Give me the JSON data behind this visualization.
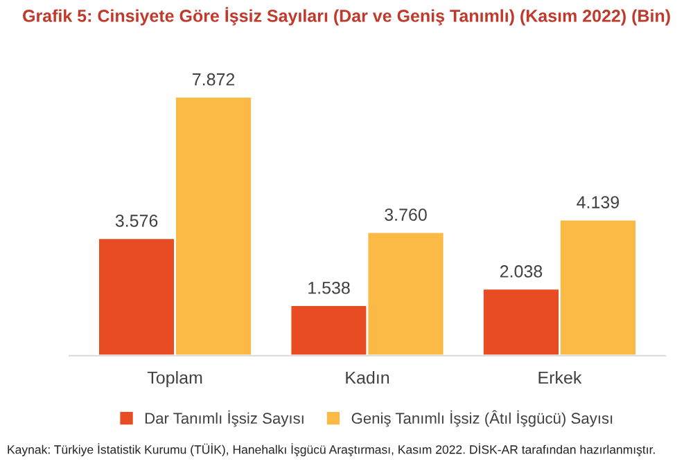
{
  "chart_data": {
    "type": "bar",
    "title": "Grafik 5: Cinsiyete Göre İşsiz Sayıları (Dar ve Geniş Tanımlı) (Kasım 2022) (Bin)",
    "categories": [
      "Toplam",
      "Kadın",
      "Erkek"
    ],
    "series": [
      {
        "name": "Dar Tanımlı İşsiz Sayısı",
        "color": "#e84c22",
        "values": [
          3576,
          1538,
          2038
        ],
        "value_labels": [
          "3.576",
          "1.538",
          "2.038"
        ]
      },
      {
        "name": "Geniş Tanımlı İşsiz (Âtıl İşgücü) Sayısı",
        "color": "#fbb946",
        "values": [
          7872,
          3760,
          4139
        ],
        "value_labels": [
          "7.872",
          "3.760",
          "4.139"
        ]
      }
    ],
    "legend": "bottom",
    "grid": false,
    "annotations": [
      "Kaynak: Türkiye İstatistik Kurumu (TÜİK), Hanehalkı İşgücü Araştırması, Kasım 2022. DİSK-AR tarafından hazırlanmıştır."
    ]
  }
}
